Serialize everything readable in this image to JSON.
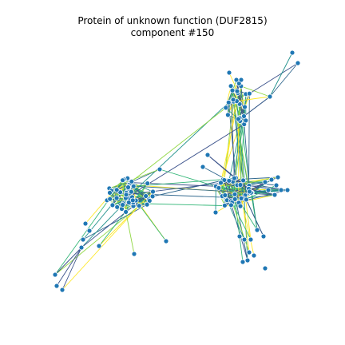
{
  "figure": {
    "title_line1": "Protein of unknown function (DUF2815)",
    "title_line2": "component #150"
  },
  "colors": {
    "node_fill": "#1f77b4",
    "node_stroke": "#ffffff",
    "edge_palette": [
      "#3b528b",
      "#31688e",
      "#21918c",
      "#35b779",
      "#90d743",
      "#fde725"
    ]
  },
  "graph": {
    "node_count": 148,
    "edge_colors_by": "viridis"
  }
}
